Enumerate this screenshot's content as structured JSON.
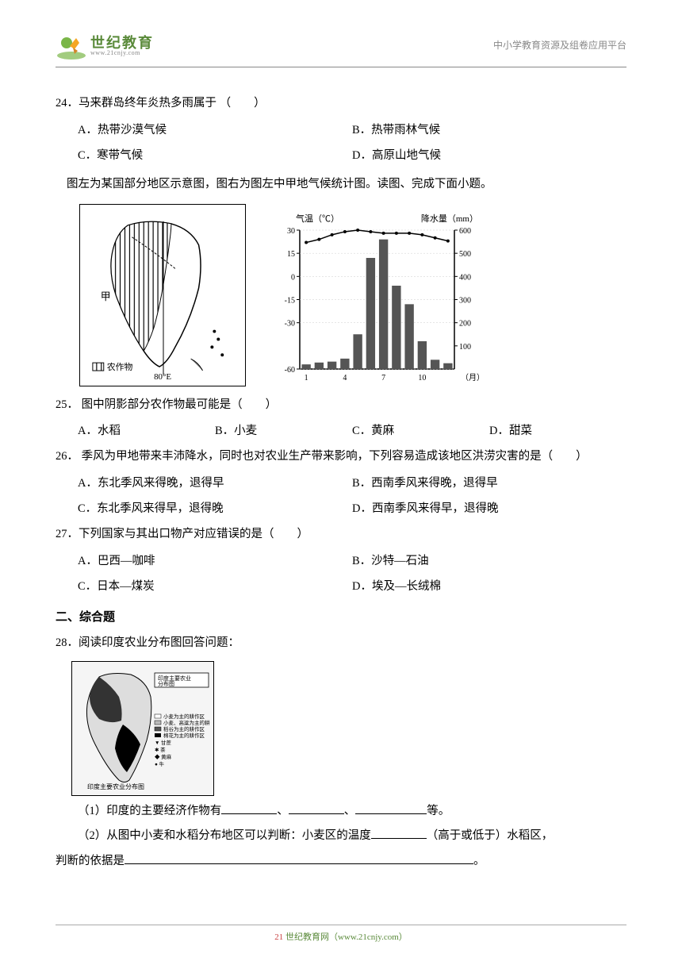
{
  "header": {
    "logo_main": "世纪教育",
    "logo_sub": "www.21cnjy.com",
    "right_text": "中小学教育资源及组卷应用平台"
  },
  "q24": {
    "text": "24．马来群岛终年炎热多雨属于 （　　）",
    "A": "A．热带沙漠气候",
    "B": "B．热带雨林气候",
    "C": "C．寒带气候",
    "D": "D．高原山地气候"
  },
  "intro": "图左为某国部分地区示意图，图右为图左中甲地气候统计图。读图、完成下面小题。",
  "map": {
    "label_jia": "甲",
    "label_crop": "农作物",
    "label_lon": "80°E"
  },
  "chart": {
    "title_left": "气温（℃）",
    "title_right": "降水量（mm）",
    "month_label": "（月）",
    "temp_ticks": [
      30,
      15,
      0,
      -15,
      -30,
      -60
    ],
    "precip_ticks": [
      600,
      500,
      400,
      300,
      200,
      100
    ],
    "x_ticks": [
      1,
      4,
      7,
      10
    ],
    "bars": [
      20,
      28,
      32,
      45,
      150,
      480,
      560,
      360,
      280,
      120,
      40,
      25
    ],
    "temps": [
      22,
      24,
      27,
      29,
      30,
      29,
      28,
      28,
      28,
      27,
      25,
      23
    ],
    "bar_color": "#555555",
    "line_color": "#000000",
    "grid_color": "#cccccc",
    "bg_color": "#ffffff"
  },
  "q25": {
    "text": "25． 图中阴影部分农作物最可能是（　　）",
    "A": "A．水稻",
    "B": "B．小麦",
    "C": "C．黄麻",
    "D": "D．甜菜"
  },
  "q26": {
    "text": "26． 季风为甲地带来丰沛降水，同时也对农业生产带来影响，下列容易造成该地区洪涝灾害的是（　　）",
    "A": "A．东北季风来得晚，退得早",
    "B": "B．西南季风来得晚，退得早",
    "C": "C．东北季风来得早，退得晚",
    "D": "D．西南季风来得早，退得晚"
  },
  "q27": {
    "text": "27．下列国家与其出口物产对应错误的是（　　）",
    "A": "A．巴西—咖啡",
    "B": "B．沙特—石油",
    "C": "C．日本—煤炭",
    "D": "D．埃及—长绒棉"
  },
  "section2": "二、综合题",
  "q28": {
    "text": "28．阅读印度农业分布图回答问题：",
    "map_title": "印度主要农业分布图",
    "legend": [
      "小麦为主的耕作区",
      "小麦、高粱为主的耕作区",
      "稻谷为主的耕作区",
      "棉花为主的耕作区",
      "甘蔗",
      "茶",
      "黄麻",
      "牛"
    ],
    "sub1_pre": "（1）印度的主要经济作物有",
    "sub1_sep": "、",
    "sub1_post": "等。",
    "sub2_pre": "（2）从图中小麦和水稻分布地区可以判断：小麦区的温度",
    "sub2_mid": "（高于或低于）水稻区，",
    "sub2_line2": "判断的依据是",
    "sub2_end": "。"
  },
  "footer": {
    "brand": "21",
    "text": " 世纪教育网（www.21cnjy.com）"
  }
}
